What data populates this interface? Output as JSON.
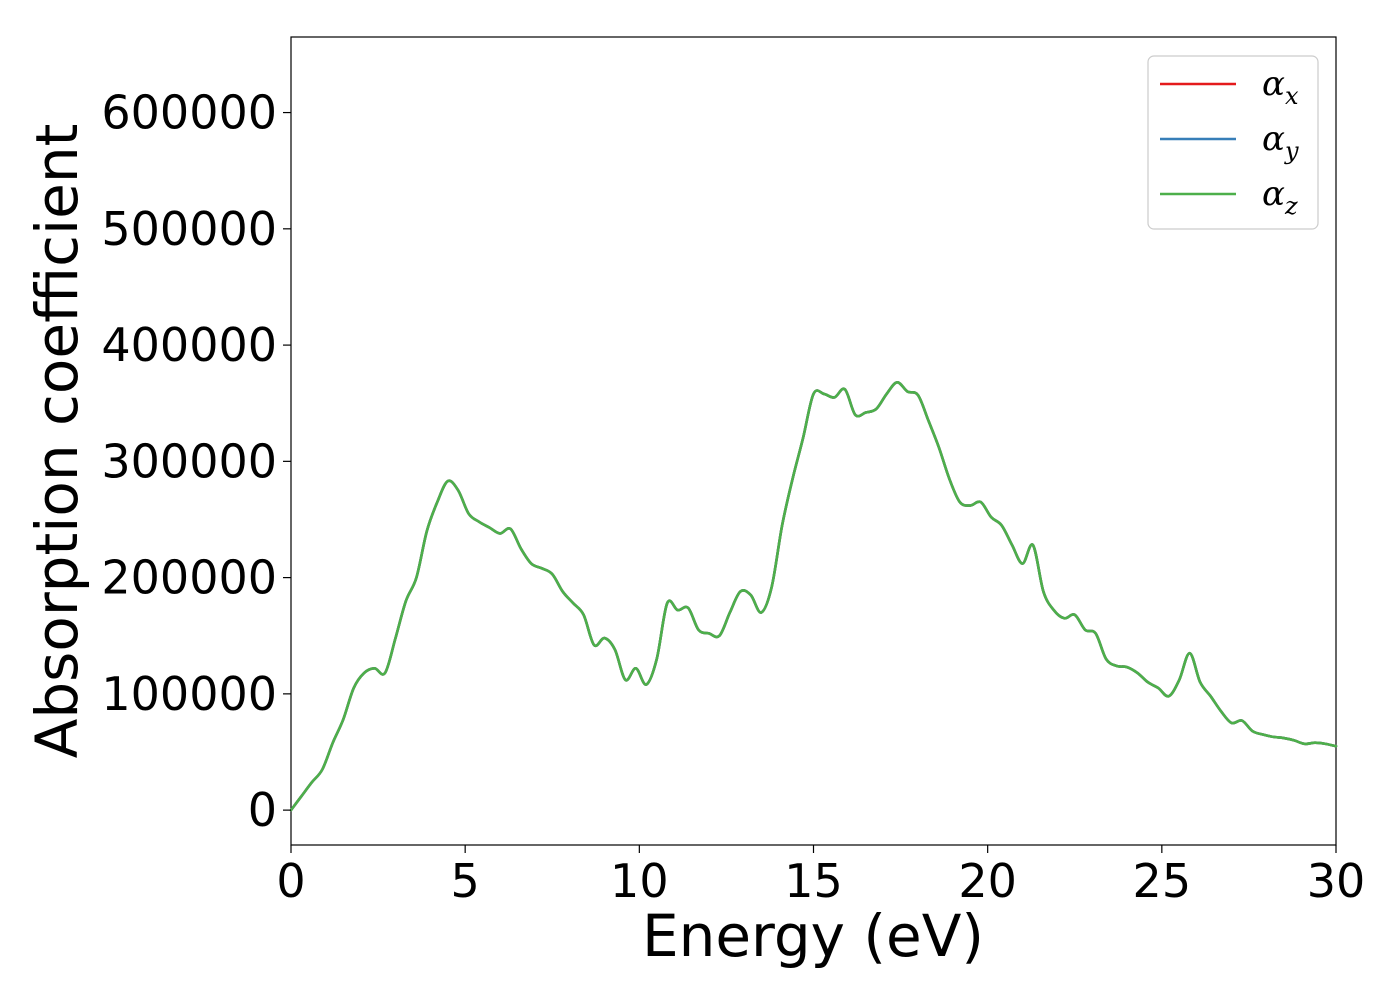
{
  "chart_data": {
    "type": "line",
    "title": "",
    "xlabel": "Energy (eV)",
    "ylabel": "Absorption coefficient",
    "xlim": [
      0,
      30
    ],
    "ylim": [
      -30000,
      665000
    ],
    "xticks": [
      "0",
      "5",
      "10",
      "15",
      "20",
      "25",
      "30"
    ],
    "yticks": [
      "0",
      "100000",
      "200000",
      "300000",
      "400000",
      "500000",
      "600000"
    ],
    "grid": false,
    "legend_position": "top-right",
    "legend": [
      {
        "symbol": "α",
        "sub": "x",
        "color": "#e41a1c"
      },
      {
        "symbol": "α",
        "sub": "y",
        "color": "#377eb8"
      },
      {
        "symbol": "α",
        "sub": "z",
        "color": "#4daf4a"
      }
    ],
    "x": [
      0,
      0.3,
      0.6,
      0.9,
      1.2,
      1.5,
      1.8,
      2.1,
      2.4,
      2.7,
      3.0,
      3.3,
      3.6,
      3.9,
      4.2,
      4.5,
      4.8,
      5.1,
      5.4,
      5.7,
      6.0,
      6.3,
      6.6,
      6.9,
      7.2,
      7.5,
      7.8,
      8.1,
      8.4,
      8.7,
      9.0,
      9.3,
      9.6,
      9.9,
      10.2,
      10.5,
      10.8,
      11.1,
      11.4,
      11.7,
      12.0,
      12.3,
      12.6,
      12.9,
      13.2,
      13.5,
      13.8,
      14.1,
      14.4,
      14.7,
      15.0,
      15.3,
      15.6,
      15.9,
      16.2,
      16.5,
      16.8,
      17.1,
      17.4,
      17.7,
      18.0,
      18.3,
      18.6,
      18.9,
      19.2,
      19.5,
      19.8,
      20.1,
      20.4,
      20.7,
      21.0,
      21.3,
      21.6,
      21.9,
      22.2,
      22.5,
      22.8,
      23.1,
      23.4,
      23.7,
      24.0,
      24.3,
      24.6,
      24.9,
      25.2,
      25.5,
      25.8,
      26.1,
      26.4,
      26.7,
      27.0,
      27.3,
      27.6,
      27.9,
      28.2,
      28.5,
      28.8,
      29.1,
      29.4,
      29.7,
      30.0
    ],
    "series": [
      {
        "name": "αx",
        "color": "#e41a1c",
        "values": [
          0,
          12000,
          24000,
          35000,
          58000,
          78000,
          105000,
          118000,
          122000,
          118000,
          148000,
          180000,
          200000,
          240000,
          265000,
          283000,
          275000,
          255000,
          248000,
          243000,
          238000,
          242000,
          225000,
          212000,
          208000,
          203000,
          188000,
          178000,
          168000,
          142000,
          148000,
          138000,
          112000,
          122000,
          108000,
          130000,
          178000,
          172000,
          174000,
          155000,
          152000,
          150000,
          170000,
          188000,
          185000,
          170000,
          192000,
          245000,
          285000,
          320000,
          358000,
          358000,
          355000,
          362000,
          340000,
          342000,
          345000,
          358000,
          368000,
          360000,
          357000,
          335000,
          312000,
          285000,
          265000,
          262000,
          265000,
          252000,
          245000,
          228000,
          212000,
          228000,
          188000,
          172000,
          165000,
          168000,
          155000,
          152000,
          130000,
          124000,
          123000,
          118000,
          110000,
          105000,
          98000,
          112000,
          135000,
          110000,
          98000,
          85000,
          75000,
          77000,
          68000,
          65000,
          63000,
          62000,
          60000,
          57000,
          58000,
          57000,
          55000
        ]
      },
      {
        "name": "αy",
        "color": "#377eb8",
        "values": [
          0,
          12000,
          24000,
          35000,
          58000,
          78000,
          105000,
          118000,
          122000,
          118000,
          148000,
          180000,
          200000,
          240000,
          265000,
          283000,
          275000,
          255000,
          248000,
          243000,
          238000,
          242000,
          225000,
          212000,
          208000,
          203000,
          188000,
          178000,
          168000,
          142000,
          148000,
          138000,
          112000,
          122000,
          108000,
          130000,
          178000,
          172000,
          174000,
          155000,
          152000,
          150000,
          170000,
          188000,
          185000,
          170000,
          192000,
          245000,
          285000,
          320000,
          358000,
          358000,
          355000,
          362000,
          340000,
          342000,
          345000,
          358000,
          368000,
          360000,
          357000,
          335000,
          312000,
          285000,
          265000,
          262000,
          265000,
          252000,
          245000,
          228000,
          212000,
          228000,
          188000,
          172000,
          165000,
          168000,
          155000,
          152000,
          130000,
          124000,
          123000,
          118000,
          110000,
          105000,
          98000,
          112000,
          135000,
          110000,
          98000,
          85000,
          75000,
          77000,
          68000,
          65000,
          63000,
          62000,
          60000,
          57000,
          58000,
          57000,
          55000
        ]
      },
      {
        "name": "αz",
        "color": "#4daf4a",
        "values": [
          0,
          12000,
          24000,
          35000,
          58000,
          78000,
          105000,
          118000,
          122000,
          118000,
          148000,
          180000,
          200000,
          240000,
          265000,
          283000,
          275000,
          255000,
          248000,
          243000,
          238000,
          242000,
          225000,
          212000,
          208000,
          203000,
          188000,
          178000,
          168000,
          142000,
          148000,
          138000,
          112000,
          122000,
          108000,
          130000,
          178000,
          172000,
          174000,
          155000,
          152000,
          150000,
          170000,
          188000,
          185000,
          170000,
          192000,
          245000,
          285000,
          320000,
          358000,
          358000,
          355000,
          362000,
          340000,
          342000,
          345000,
          358000,
          368000,
          360000,
          357000,
          335000,
          312000,
          285000,
          265000,
          262000,
          265000,
          252000,
          245000,
          228000,
          212000,
          228000,
          188000,
          172000,
          165000,
          168000,
          155000,
          152000,
          130000,
          124000,
          123000,
          118000,
          110000,
          105000,
          98000,
          112000,
          135000,
          110000,
          98000,
          85000,
          75000,
          77000,
          68000,
          65000,
          63000,
          62000,
          60000,
          57000,
          58000,
          57000,
          55000
        ]
      }
    ]
  }
}
